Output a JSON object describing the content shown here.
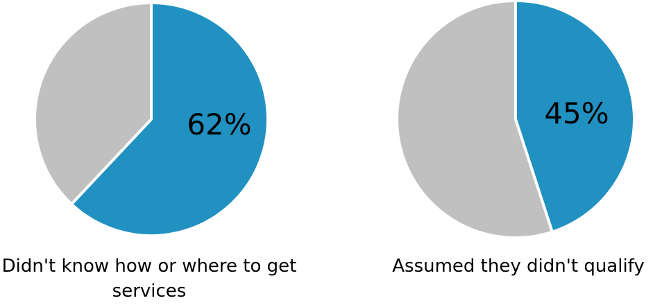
{
  "chart_data": [
    {
      "type": "pie",
      "caption": "Didn't know how or where to get services",
      "slices": [
        {
          "value": 62,
          "label": "62%",
          "color": "#2191c2"
        },
        {
          "value": 38,
          "label": "",
          "color": "#c0c0c0"
        }
      ]
    },
    {
      "type": "pie",
      "caption": "Assumed they didn't qualify",
      "slices": [
        {
          "value": 45,
          "label": "45%",
          "color": "#2191c2"
        },
        {
          "value": 55,
          "label": "",
          "color": "#c0c0c0"
        }
      ]
    }
  ]
}
